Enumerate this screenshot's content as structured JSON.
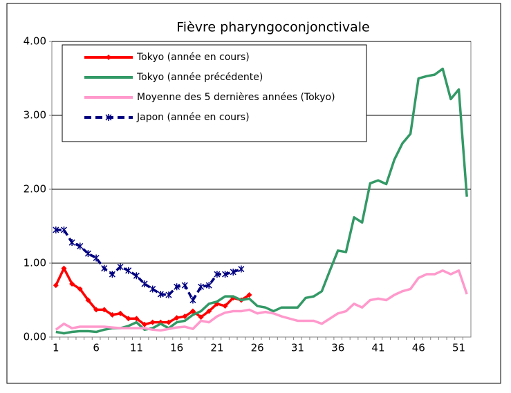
{
  "chart_data": {
    "type": "line",
    "title": "Fièvre pharyngoconjonctivale",
    "categories": [
      "1",
      null,
      null,
      null,
      null,
      "6",
      null,
      null,
      null,
      null,
      "11",
      null,
      null,
      null,
      null,
      "16",
      null,
      null,
      null,
      null,
      "21",
      null,
      null,
      null,
      null,
      "26",
      null,
      null,
      null,
      null,
      "31",
      null,
      null,
      null,
      null,
      "36",
      null,
      null,
      null,
      null,
      "41",
      null,
      null,
      null,
      null,
      "46",
      null,
      null,
      null,
      null,
      "51",
      null
    ],
    "ylim": [
      0,
      4
    ],
    "yticks": [
      {
        "value": 0,
        "label": "0.00"
      },
      {
        "value": 1,
        "label": "1.00"
      },
      {
        "value": 2,
        "label": "2.00"
      },
      {
        "value": 3,
        "label": "3.00"
      },
      {
        "value": 4,
        "label": "4.00"
      }
    ],
    "grid": true,
    "legend": "top-left",
    "series": [
      {
        "name": "Tokyo (année en cours)",
        "color": "#ff0000",
        "marker": "diamond",
        "dash": false,
        "values": [
          0.7,
          0.93,
          0.72,
          0.65,
          0.5,
          0.37,
          0.37,
          0.3,
          0.32,
          0.25,
          0.25,
          0.17,
          0.2,
          0.2,
          0.2,
          0.26,
          0.28,
          0.35,
          0.27,
          0.35,
          0.45,
          0.42,
          0.53,
          0.5,
          0.57,
          null,
          null,
          null,
          null,
          null,
          null,
          null,
          null,
          null,
          null,
          null,
          null,
          null,
          null,
          null,
          null,
          null,
          null,
          null,
          null,
          null,
          null,
          null,
          null,
          null,
          null,
          null
        ]
      },
      {
        "name": "Tokyo (année précédente)",
        "color": "#339966",
        "marker": null,
        "dash": false,
        "values": [
          0.07,
          0.05,
          0.07,
          0.08,
          0.08,
          0.07,
          0.1,
          0.12,
          0.12,
          0.15,
          0.2,
          0.1,
          0.12,
          0.18,
          0.12,
          0.2,
          0.22,
          0.3,
          0.35,
          0.45,
          0.48,
          0.55,
          0.55,
          0.5,
          0.52,
          0.42,
          0.4,
          0.35,
          0.4,
          0.4,
          0.4,
          0.53,
          0.55,
          0.62,
          0.9,
          1.17,
          1.15,
          1.62,
          1.55,
          2.08,
          2.12,
          2.07,
          2.4,
          2.62,
          2.75,
          3.5,
          3.53,
          3.55,
          3.63,
          3.22,
          3.35,
          1.9
        ]
      },
      {
        "name": "Moyenne des 5 dernières années (Tokyo)",
        "color": "#ff99cc",
        "marker": null,
        "dash": false,
        "values": [
          0.1,
          0.18,
          0.12,
          0.14,
          0.14,
          0.14,
          0.14,
          0.13,
          0.12,
          0.12,
          0.12,
          0.12,
          0.1,
          0.09,
          0.11,
          0.13,
          0.14,
          0.11,
          0.22,
          0.2,
          0.28,
          0.33,
          0.35,
          0.35,
          0.37,
          0.32,
          0.34,
          0.32,
          0.28,
          0.25,
          0.22,
          0.22,
          0.22,
          0.18,
          0.25,
          0.32,
          0.35,
          0.45,
          0.4,
          0.5,
          0.52,
          0.5,
          0.57,
          0.62,
          0.65,
          0.8,
          0.85,
          0.85,
          0.9,
          0.85,
          0.9,
          0.58
        ]
      },
      {
        "name": "Japon (année en cours)",
        "color": "#000080",
        "marker": "x",
        "dash": true,
        "values": [
          1.45,
          1.45,
          1.28,
          1.23,
          1.13,
          1.07,
          0.93,
          0.85,
          0.95,
          0.9,
          0.83,
          0.72,
          0.65,
          0.58,
          0.57,
          0.68,
          0.7,
          0.5,
          0.68,
          0.7,
          0.85,
          0.85,
          0.88,
          0.92,
          null,
          null,
          null,
          null,
          null,
          null,
          null,
          null,
          null,
          null,
          null,
          null,
          null,
          null,
          null,
          null,
          null,
          null,
          null,
          null,
          null,
          null,
          null,
          null,
          null,
          null,
          null,
          null
        ]
      }
    ]
  }
}
